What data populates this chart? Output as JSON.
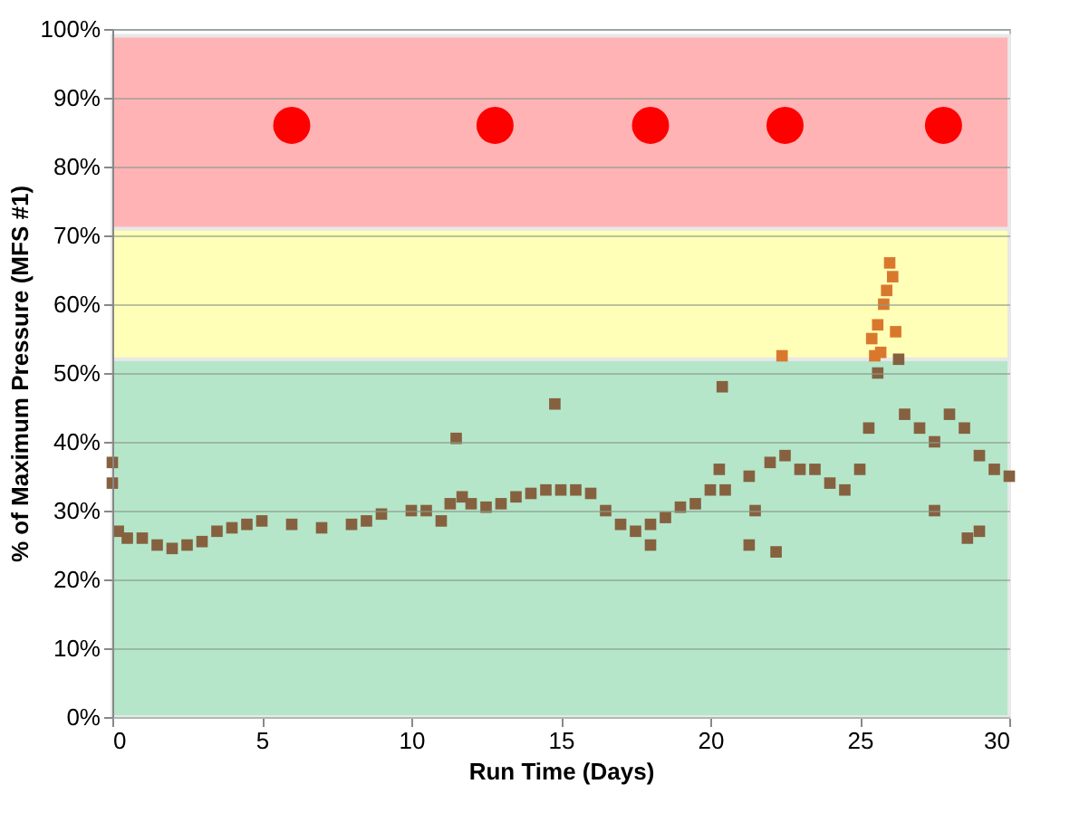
{
  "chart_data": {
    "type": "scatter",
    "xlabel": "Run Time (Days)",
    "ylabel": "% of Maximum Pressure (MFS #1)",
    "xlim": [
      0,
      30
    ],
    "xticks": [
      0,
      5,
      10,
      15,
      20,
      25,
      30
    ],
    "ylim": [
      0,
      100
    ],
    "yticks": [
      {
        "value": 0,
        "label": "0%"
      },
      {
        "value": 10,
        "label": "10%"
      },
      {
        "value": 20,
        "label": "20%"
      },
      {
        "value": 30,
        "label": "30%"
      },
      {
        "value": 40,
        "label": "40%"
      },
      {
        "value": 50,
        "label": "50%"
      },
      {
        "value": 60,
        "label": "60%"
      },
      {
        "value": 70,
        "label": "70%"
      },
      {
        "value": 80,
        "label": "80%"
      },
      {
        "value": 90,
        "label": "90%"
      },
      {
        "value": 100,
        "label": "100%"
      }
    ],
    "grid": "y",
    "bands": [
      {
        "axis": "y",
        "from": 0,
        "to": 52,
        "color": "#b5e6ca"
      },
      {
        "axis": "y",
        "from": 52,
        "to": 71,
        "color": "#ffffb8"
      },
      {
        "axis": "y",
        "from": 71,
        "to": 99,
        "color": "#ffb3b5"
      }
    ],
    "series": [
      {
        "color": "#86613f",
        "marker": "square",
        "x": [
          0,
          0,
          0.2,
          0.5,
          1,
          1.5,
          2,
          2.5,
          3,
          3.5,
          4,
          4.5,
          5,
          6,
          7,
          8,
          8.5,
          9,
          10,
          10.5,
          11,
          11.3,
          11.5,
          11.7,
          12,
          12.5,
          13,
          13.5,
          14,
          14.5,
          14.8,
          15,
          15.5,
          16,
          16.5,
          17,
          17.5,
          18,
          18,
          18.5,
          19,
          19.5,
          20,
          20.3,
          20.4,
          20.5,
          21.3,
          21.3,
          21.5,
          22,
          22.2,
          22.5,
          23,
          23.5,
          24,
          24.5,
          25,
          25.3,
          25.6,
          26.3,
          26.5,
          27,
          27.5,
          27.5,
          28,
          28.5,
          28.6,
          29,
          29,
          29.5,
          30
        ],
        "values": [
          37,
          34,
          27,
          26,
          26,
          25,
          24.5,
          25,
          25.5,
          27,
          27.5,
          28,
          28.5,
          28,
          27.5,
          28,
          28.5,
          29.5,
          30,
          30,
          28.5,
          31,
          40.5,
          32,
          31,
          30.5,
          31,
          32,
          32.5,
          33,
          45.5,
          33,
          33,
          32.5,
          30,
          28,
          27,
          28,
          25,
          29,
          30.5,
          31,
          33,
          36,
          48,
          33,
          35,
          25,
          30,
          37,
          24,
          38,
          36,
          36,
          34,
          33,
          36,
          42,
          50,
          52,
          44,
          42,
          40,
          30,
          44,
          42,
          26,
          38,
          27,
          36,
          35
        ]
      },
      {
        "color": "#d9782d",
        "marker": "square",
        "x": [
          22.4,
          25.4,
          25.5,
          25.6,
          25.7,
          25.8,
          25.9,
          26.0,
          26.1,
          26.2
        ],
        "values": [
          52.5,
          55,
          52.5,
          57,
          53,
          60,
          62,
          66,
          64,
          56
        ]
      },
      {
        "color": "#ff0000",
        "marker": "circle",
        "x": [
          6,
          12.8,
          18,
          22.5,
          27.8
        ],
        "values": [
          86,
          86,
          86,
          86,
          86
        ]
      }
    ]
  }
}
